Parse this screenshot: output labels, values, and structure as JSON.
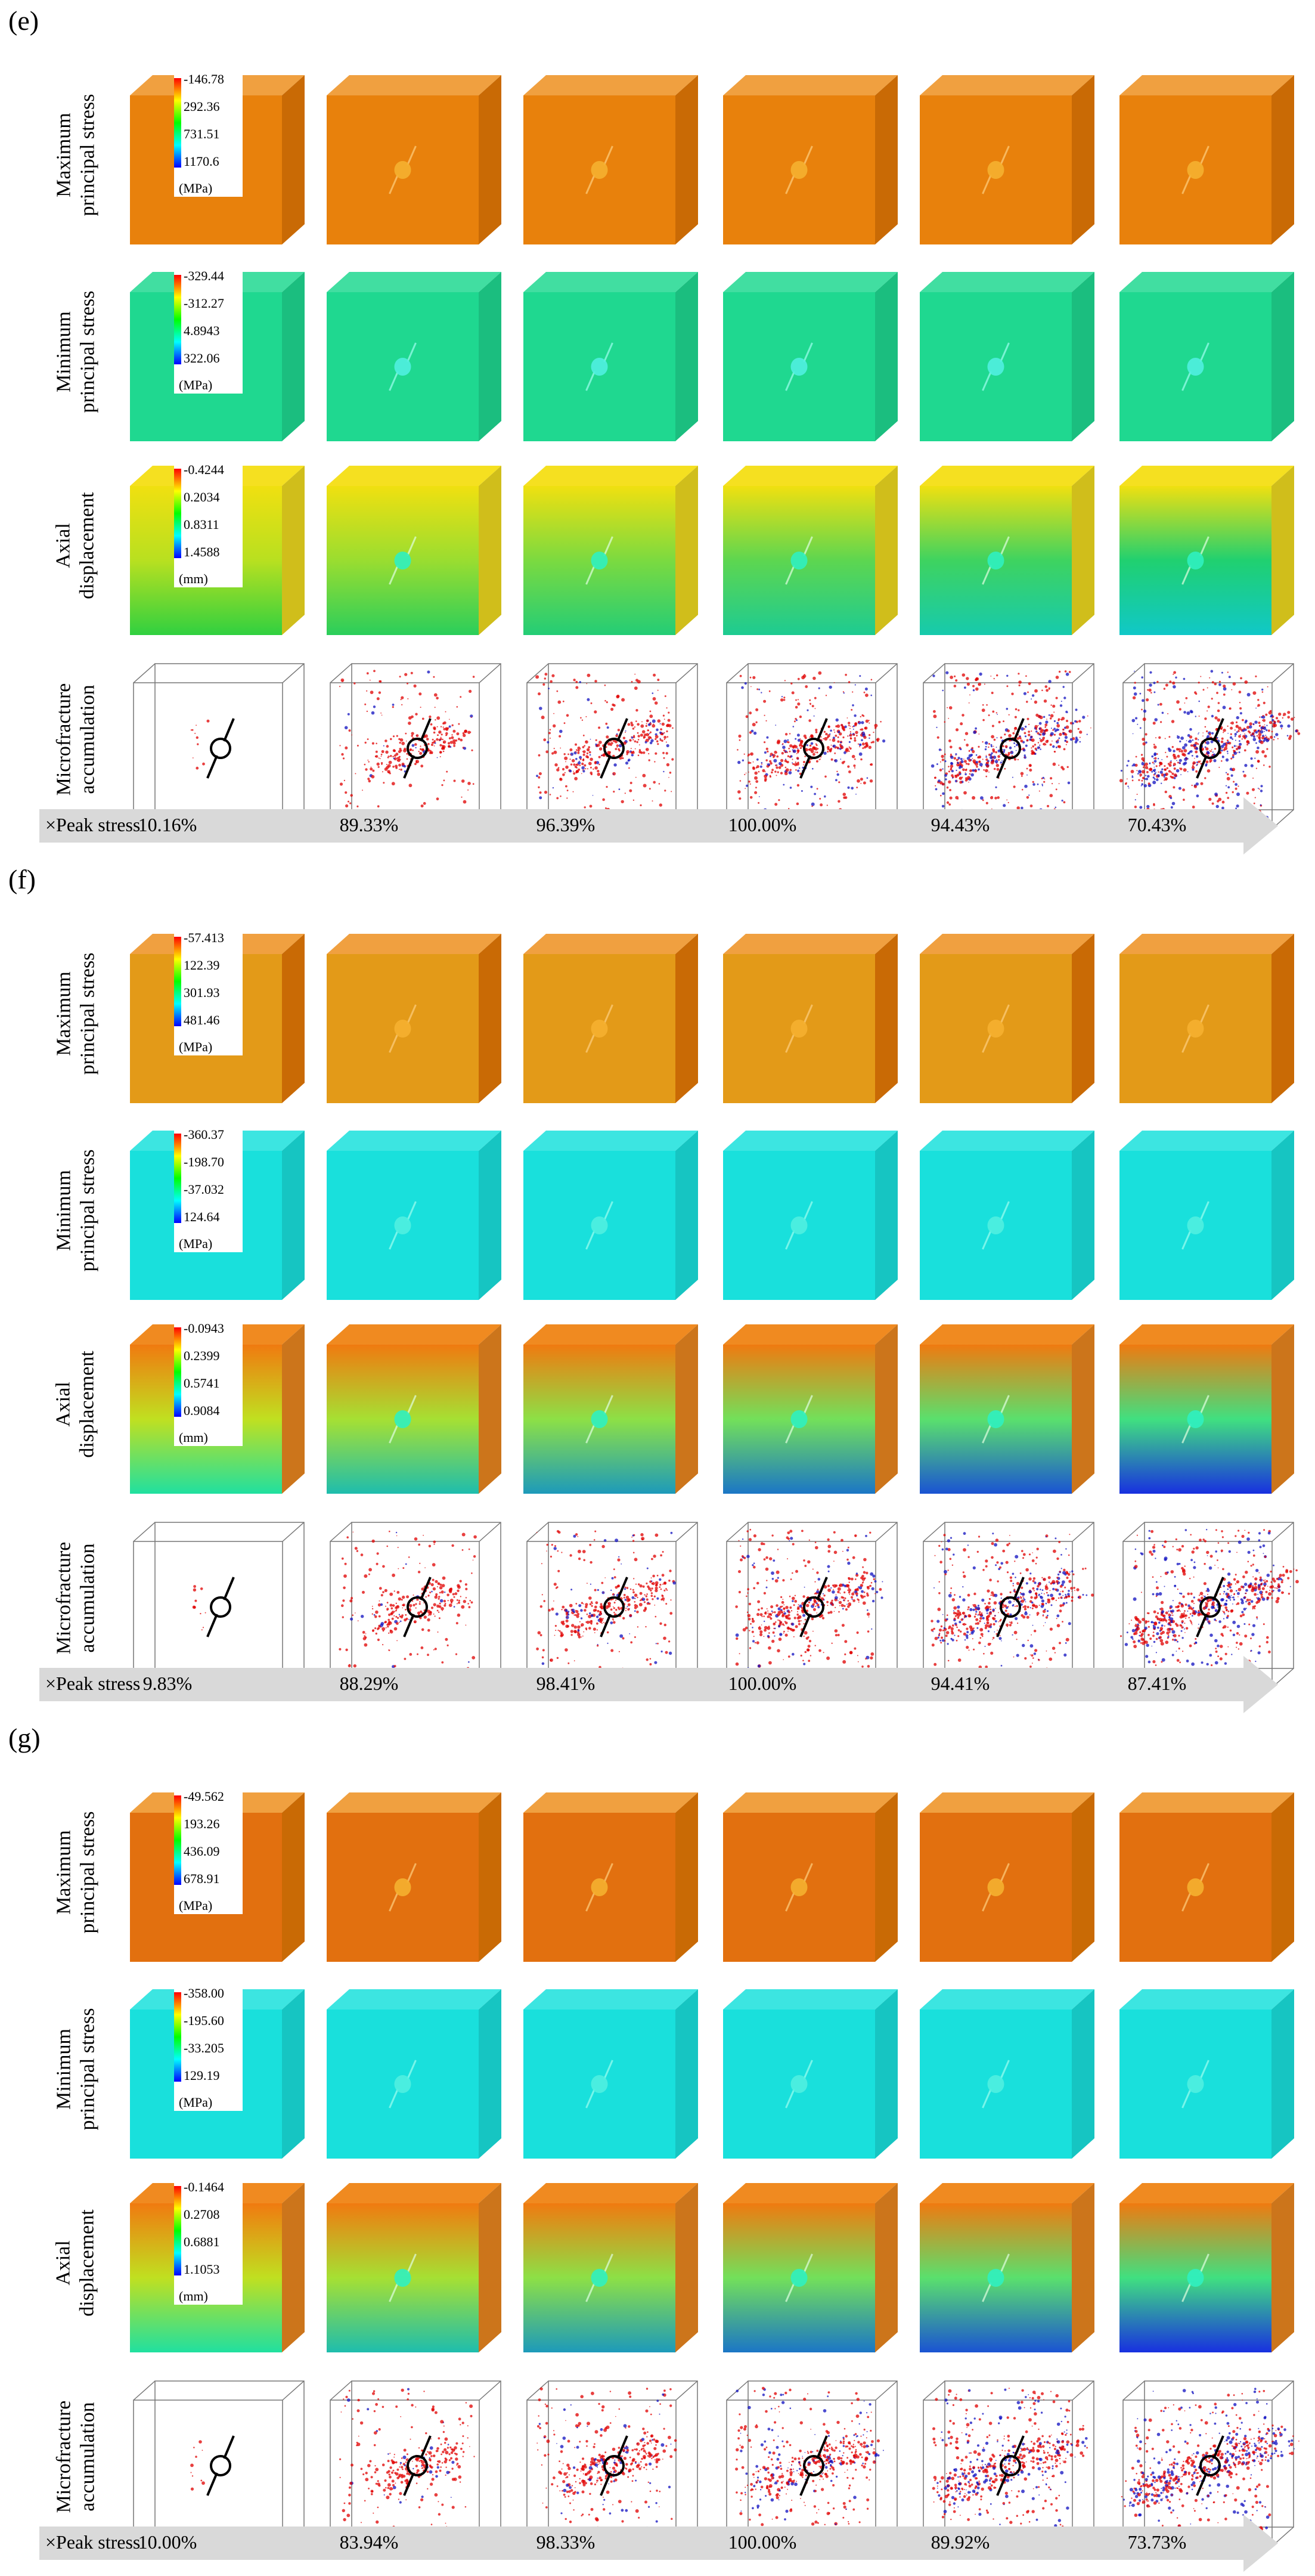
{
  "panels": [
    {
      "label": "(e)",
      "rows": [
        {
          "label_lines": [
            "Maximum",
            "principal stress"
          ],
          "legend": [
            "-146.78",
            "292.36",
            "731.51",
            "1170.6"
          ],
          "unit": "(MPa)"
        },
        {
          "label_lines": [
            "Minimum",
            "principal stress"
          ],
          "legend": [
            "-329.44",
            "-312.27",
            "4.8943",
            "322.06"
          ],
          "unit": "(MPa)"
        },
        {
          "label_lines": [
            "Axial",
            "displacement"
          ],
          "legend": [
            "-0.4244",
            "0.2034",
            "0.8311",
            "1.4588"
          ],
          "unit": "(mm)"
        },
        {
          "label_lines": [
            "Microfracture",
            "accumulation"
          ]
        }
      ],
      "axis_label": "×Peak stress",
      "peak_stress": [
        "10.16%",
        "89.33%",
        "96.39%",
        "100.00%",
        "94.43%",
        "70.43%"
      ]
    },
    {
      "label": "(f)",
      "rows": [
        {
          "label_lines": [
            "Maximum",
            "principal stress"
          ],
          "legend": [
            "-57.413",
            "122.39",
            "301.93",
            "481.46"
          ],
          "unit": "(MPa)"
        },
        {
          "label_lines": [
            "Minimum",
            "principal stress"
          ],
          "legend": [
            "-360.37",
            "-198.70",
            "-37.032",
            "124.64"
          ],
          "unit": "(MPa)"
        },
        {
          "label_lines": [
            "Axial",
            "displacement"
          ],
          "legend": [
            "-0.0943",
            "0.2399",
            "0.5741",
            "0.9084"
          ],
          "unit": "(mm)"
        },
        {
          "label_lines": [
            "Microfracture",
            "accumulation"
          ]
        }
      ],
      "axis_label": "×Peak stress",
      "peak_stress": [
        "9.83%",
        "88.29%",
        "98.41%",
        "100.00%",
        "94.41%",
        "87.41%"
      ]
    },
    {
      "label": "(g)",
      "rows": [
        {
          "label_lines": [
            "Maximum",
            "principal stress"
          ],
          "legend": [
            "-49.562",
            "193.26",
            "436.09",
            "678.91"
          ],
          "unit": "(MPa)"
        },
        {
          "label_lines": [
            "Minimum",
            "principal stress"
          ],
          "legend": [
            "-358.00",
            "-195.60",
            "-33.205",
            "129.19"
          ],
          "unit": "(MPa)"
        },
        {
          "label_lines": [
            "Axial",
            "displacement"
          ],
          "legend": [
            "-0.1464",
            "0.2708",
            "0.6881",
            "1.1053"
          ],
          "unit": "(mm)"
        },
        {
          "label_lines": [
            "Microfracture",
            "accumulation"
          ]
        }
      ],
      "axis_label": "×Peak stress",
      "peak_stress": [
        "10.00%",
        "83.94%",
        "98.33%",
        "100.00%",
        "89.92%",
        "73.73%"
      ]
    }
  ],
  "colors": {
    "max_stress_front": "#e8810c",
    "max_stress_top": "#f0a040",
    "max_stress_side": "#c96a05",
    "min_stress_e_front": "#1fd890",
    "min_stress_cyan_front": "#19e0dc",
    "axial_top": "#f5e020",
    "crack_red": "#e00000",
    "crack_blue": "#1010c0",
    "arrow_gray": "#d9d9d9"
  }
}
